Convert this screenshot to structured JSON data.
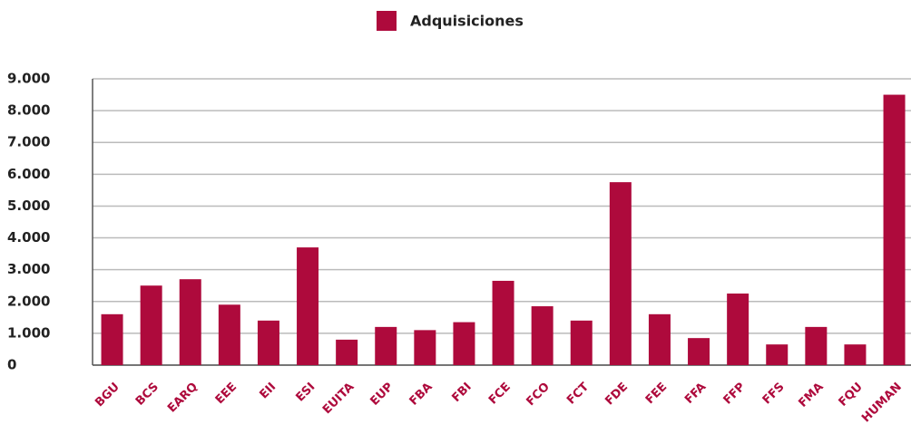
{
  "chart_data": {
    "type": "bar",
    "categories": [
      "BGU",
      "BCS",
      "EARQ",
      "EEE",
      "EII",
      "ESI",
      "EUITA",
      "EUP",
      "FBA",
      "FBI",
      "FCE",
      "FCO",
      "FCT",
      "FDE",
      "FEE",
      "FFA",
      "FFP",
      "FFS",
      "FMA",
      "FQU",
      "HUMAN"
    ],
    "series": [
      {
        "name": "Adquisiciones",
        "color": "#ae0a3c",
        "values": [
          1600,
          2500,
          2700,
          1900,
          1400,
          3700,
          800,
          1200,
          1100,
          1350,
          2650,
          1850,
          1400,
          5750,
          1600,
          850,
          2250,
          650,
          1200,
          650,
          8500
        ]
      }
    ],
    "ylim": [
      0,
      9000
    ],
    "yticks": [
      0,
      {
        "value": 1000,
        "label": "1.000"
      },
      {
        "value": 2000,
        "label": "2.000"
      },
      {
        "value": 3000,
        "label": "3.000"
      },
      {
        "value": 4000,
        "label": "4.000"
      },
      {
        "value": 5000,
        "label": "5.000"
      },
      {
        "value": 6000,
        "label": "6.000"
      },
      {
        "value": 7000,
        "label": "7.000"
      },
      {
        "value": 8000,
        "label": "8.000"
      },
      {
        "value": 9000,
        "label": "9.000"
      }
    ],
    "grid": true,
    "legend": "top"
  }
}
